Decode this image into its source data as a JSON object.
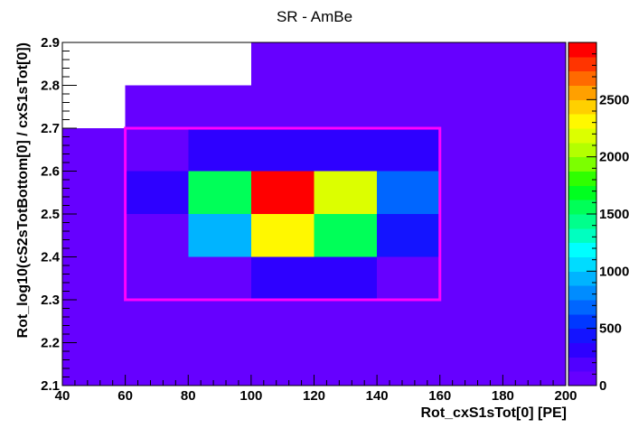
{
  "chart_data": {
    "type": "heatmap",
    "title": "SR - AmBe",
    "xlabel": "Rot_cxS1sTot[0]  [PE]",
    "ylabel": "Rot_log10(cS2sTotBottom[0] / cxS1sTot[0])",
    "xlim": [
      40,
      200
    ],
    "ylim": [
      2.1,
      2.9
    ],
    "x_bin_width": 20,
    "y_bin_width": 0.1,
    "x_ticks": [
      "40",
      "60",
      "80",
      "100",
      "120",
      "140",
      "160",
      "180",
      "200"
    ],
    "y_ticks": [
      "2.1",
      "2.2",
      "2.3",
      "2.4",
      "2.5",
      "2.6",
      "2.7",
      "2.8",
      "2.9"
    ],
    "x_bin_edges": [
      40,
      60,
      80,
      100,
      120,
      140,
      160,
      180,
      200
    ],
    "y_bin_edges": [
      2.1,
      2.2,
      2.3,
      2.4,
      2.5,
      2.6,
      2.7,
      2.8,
      2.9
    ],
    "z_ticks": [
      "0",
      "500",
      "1000",
      "1500",
      "2000",
      "2500"
    ],
    "z_tick_values": [
      0,
      500,
      1000,
      1500,
      2000,
      2500
    ],
    "z_max": 3000,
    "palette": [
      "#6600ff",
      "#5000ff",
      "#2e00ff",
      "#1414ff",
      "#0038ff",
      "#0066ff",
      "#008cff",
      "#00b4ff",
      "#00dcff",
      "#00ffff",
      "#00ffc0",
      "#00ff8c",
      "#00ff58",
      "#00ff20",
      "#30ff00",
      "#7cff00",
      "#b4ff00",
      "#dcff00",
      "#fff800",
      "#ffd000",
      "#ffa000",
      "#ff6a00",
      "#ff3400",
      "#ff0000"
    ],
    "cells": [
      {
        "x": [
          40,
          200
        ],
        "y": [
          2.1,
          2.3
        ],
        "z": 20
      },
      {
        "x": [
          40,
          80
        ],
        "y": [
          2.3,
          2.7
        ],
        "z": 20
      },
      {
        "x": [
          80,
          100
        ],
        "y": [
          2.3,
          2.4
        ],
        "z": 20
      },
      {
        "x": [
          100,
          140
        ],
        "y": [
          2.3,
          2.4
        ],
        "z": 280
      },
      {
        "x": [
          140,
          200
        ],
        "y": [
          2.3,
          2.4
        ],
        "z": 20
      },
      {
        "x": [
          80,
          100
        ],
        "y": [
          2.4,
          2.5
        ],
        "z": 900
      },
      {
        "x": [
          100,
          120
        ],
        "y": [
          2.4,
          2.5
        ],
        "z": 2300
      },
      {
        "x": [
          120,
          140
        ],
        "y": [
          2.4,
          2.5
        ],
        "z": 1600
      },
      {
        "x": [
          140,
          160
        ],
        "y": [
          2.4,
          2.5
        ],
        "z": 400
      },
      {
        "x": [
          160,
          200
        ],
        "y": [
          2.4,
          2.5
        ],
        "z": 20
      },
      {
        "x": [
          40,
          60
        ],
        "y": [
          2.5,
          2.6
        ],
        "z": 20
      },
      {
        "x": [
          60,
          80
        ],
        "y": [
          2.5,
          2.6
        ],
        "z": 280
      },
      {
        "x": [
          80,
          100
        ],
        "y": [
          2.5,
          2.6
        ],
        "z": 1500
      },
      {
        "x": [
          100,
          120
        ],
        "y": [
          2.5,
          2.6
        ],
        "z": 2950
      },
      {
        "x": [
          120,
          140
        ],
        "y": [
          2.5,
          2.6
        ],
        "z": 2150
      },
      {
        "x": [
          140,
          160
        ],
        "y": [
          2.5,
          2.6
        ],
        "z": 700
      },
      {
        "x": [
          160,
          200
        ],
        "y": [
          2.5,
          2.6
        ],
        "z": 20
      },
      {
        "x": [
          80,
          160
        ],
        "y": [
          2.6,
          2.7
        ],
        "z": 280
      },
      {
        "x": [
          160,
          200
        ],
        "y": [
          2.6,
          2.7
        ],
        "z": 20
      },
      {
        "x": [
          60,
          80
        ],
        "y": [
          2.6,
          2.7
        ],
        "z": 20
      },
      {
        "x": [
          60,
          200
        ],
        "y": [
          2.7,
          2.8
        ],
        "z": 20
      },
      {
        "x": [
          100,
          200
        ],
        "y": [
          2.8,
          2.9
        ],
        "z": 20
      }
    ],
    "region_box": {
      "x": [
        60,
        160
      ],
      "y": [
        2.3,
        2.7
      ],
      "color": "#ff00ff"
    },
    "grid": false,
    "colorbar": "right"
  }
}
